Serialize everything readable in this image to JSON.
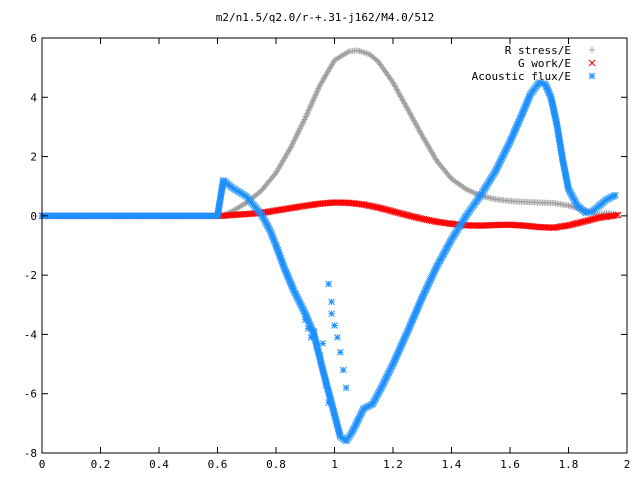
{
  "chart_data": {
    "type": "scatter",
    "title": "m2/n1.5/q2.0/r-+.31-j162/M4.0/512",
    "xlabel": "",
    "ylabel": "",
    "xlim": [
      0,
      2
    ],
    "ylim": [
      -8,
      6
    ],
    "x_ticks": [
      "0",
      "0.2",
      "0.4",
      "0.6",
      "0.8",
      "1",
      "1.2",
      "1.4",
      "1.6",
      "1.8",
      "2"
    ],
    "y_ticks": [
      "6",
      "4",
      "2",
      "0",
      "-2",
      "-4",
      "-6",
      "-8"
    ],
    "x_tick_values": [
      0,
      0.2,
      0.4,
      0.6,
      0.8,
      1.0,
      1.2,
      1.4,
      1.6,
      1.8,
      2.0
    ],
    "y_tick_values": [
      6,
      4,
      2,
      0,
      -2,
      -4,
      -6,
      -8
    ],
    "grid": false,
    "legend_position": "top-right",
    "series": [
      {
        "name": "R stress/E",
        "marker": "plus",
        "color": "#a0a0a0",
        "x": [
          0,
          0.1,
          0.2,
          0.3,
          0.4,
          0.5,
          0.6,
          0.62,
          0.65,
          0.7,
          0.75,
          0.8,
          0.85,
          0.9,
          0.95,
          1.0,
          1.05,
          1.08,
          1.12,
          1.15,
          1.2,
          1.25,
          1.3,
          1.35,
          1.4,
          1.45,
          1.5,
          1.55,
          1.6,
          1.65,
          1.7,
          1.75,
          1.8,
          1.85,
          1.88,
          1.9,
          1.93,
          1.96
        ],
        "values": [
          0,
          0,
          0,
          0,
          0,
          0,
          0,
          0.02,
          0.15,
          0.45,
          0.85,
          1.45,
          2.3,
          3.3,
          4.4,
          5.25,
          5.55,
          5.58,
          5.45,
          5.2,
          4.5,
          3.6,
          2.7,
          1.85,
          1.25,
          0.9,
          0.68,
          0.56,
          0.5,
          0.47,
          0.45,
          0.43,
          0.35,
          0.2,
          0.1,
          0.05,
          0.1,
          0.05
        ]
      },
      {
        "name": "G work/E",
        "marker": "cross",
        "color": "#ff0000",
        "x": [
          0,
          0.1,
          0.2,
          0.3,
          0.4,
          0.5,
          0.6,
          0.62,
          0.65,
          0.7,
          0.75,
          0.8,
          0.85,
          0.9,
          0.95,
          1.0,
          1.05,
          1.1,
          1.15,
          1.2,
          1.25,
          1.3,
          1.35,
          1.4,
          1.45,
          1.5,
          1.55,
          1.6,
          1.65,
          1.7,
          1.75,
          1.8,
          1.85,
          1.9,
          1.95,
          1.97
        ],
        "values": [
          0,
          0,
          0,
          0,
          0,
          0,
          0,
          0.0,
          0.03,
          0.06,
          0.1,
          0.18,
          0.26,
          0.34,
          0.41,
          0.45,
          0.44,
          0.38,
          0.28,
          0.15,
          0.02,
          -0.1,
          -0.2,
          -0.27,
          -0.32,
          -0.33,
          -0.31,
          -0.3,
          -0.33,
          -0.38,
          -0.4,
          -0.32,
          -0.2,
          -0.07,
          0.0,
          0.03
        ]
      },
      {
        "name": "Acoustic flux/E",
        "marker": "star",
        "color": "#1e90ff",
        "x": [
          0,
          0.1,
          0.2,
          0.3,
          0.4,
          0.5,
          0.6,
          0.62,
          0.65,
          0.7,
          0.72,
          0.75,
          0.78,
          0.8,
          0.83,
          0.86,
          0.9,
          0.93,
          0.96,
          1.0,
          1.02,
          1.04,
          1.06,
          1.08,
          1.1,
          1.13,
          1.16,
          1.2,
          1.25,
          1.3,
          1.35,
          1.4,
          1.45,
          1.5,
          1.55,
          1.6,
          1.64,
          1.67,
          1.7,
          1.72,
          1.74,
          1.76,
          1.78,
          1.8,
          1.83,
          1.86,
          1.88,
          1.9,
          1.93,
          1.96
        ],
        "values": [
          0,
          0,
          0,
          0,
          0,
          0,
          0,
          1.2,
          0.95,
          0.65,
          0.4,
          0.05,
          -0.5,
          -1.0,
          -1.8,
          -2.5,
          -3.3,
          -4.0,
          -5.2,
          -6.7,
          -7.45,
          -7.6,
          -7.3,
          -6.9,
          -6.5,
          -6.35,
          -5.8,
          -5.0,
          -3.9,
          -2.75,
          -1.7,
          -0.8,
          0.0,
          0.7,
          1.5,
          2.5,
          3.4,
          4.1,
          4.5,
          4.45,
          4.0,
          3.1,
          1.9,
          0.9,
          0.35,
          0.1,
          0.15,
          0.3,
          0.55,
          0.7
        ]
      },
      {
        "name": "",
        "marker": "star",
        "color": "#1e90ff",
        "x": [
          0.9,
          0.91,
          0.92,
          0.93,
          0.94,
          0.95,
          0.96,
          0.97,
          0.98,
          0.98,
          0.99,
          0.99,
          1.0,
          1.01,
          1.02,
          1.03,
          1.04
        ],
        "values": [
          -3.5,
          -3.8,
          -4.1,
          -3.9,
          -4.4,
          -4.7,
          -4.3,
          -5.7,
          -2.3,
          -6.3,
          -2.9,
          -3.3,
          -3.7,
          -4.1,
          -4.6,
          -5.2,
          -5.8
        ]
      }
    ]
  }
}
